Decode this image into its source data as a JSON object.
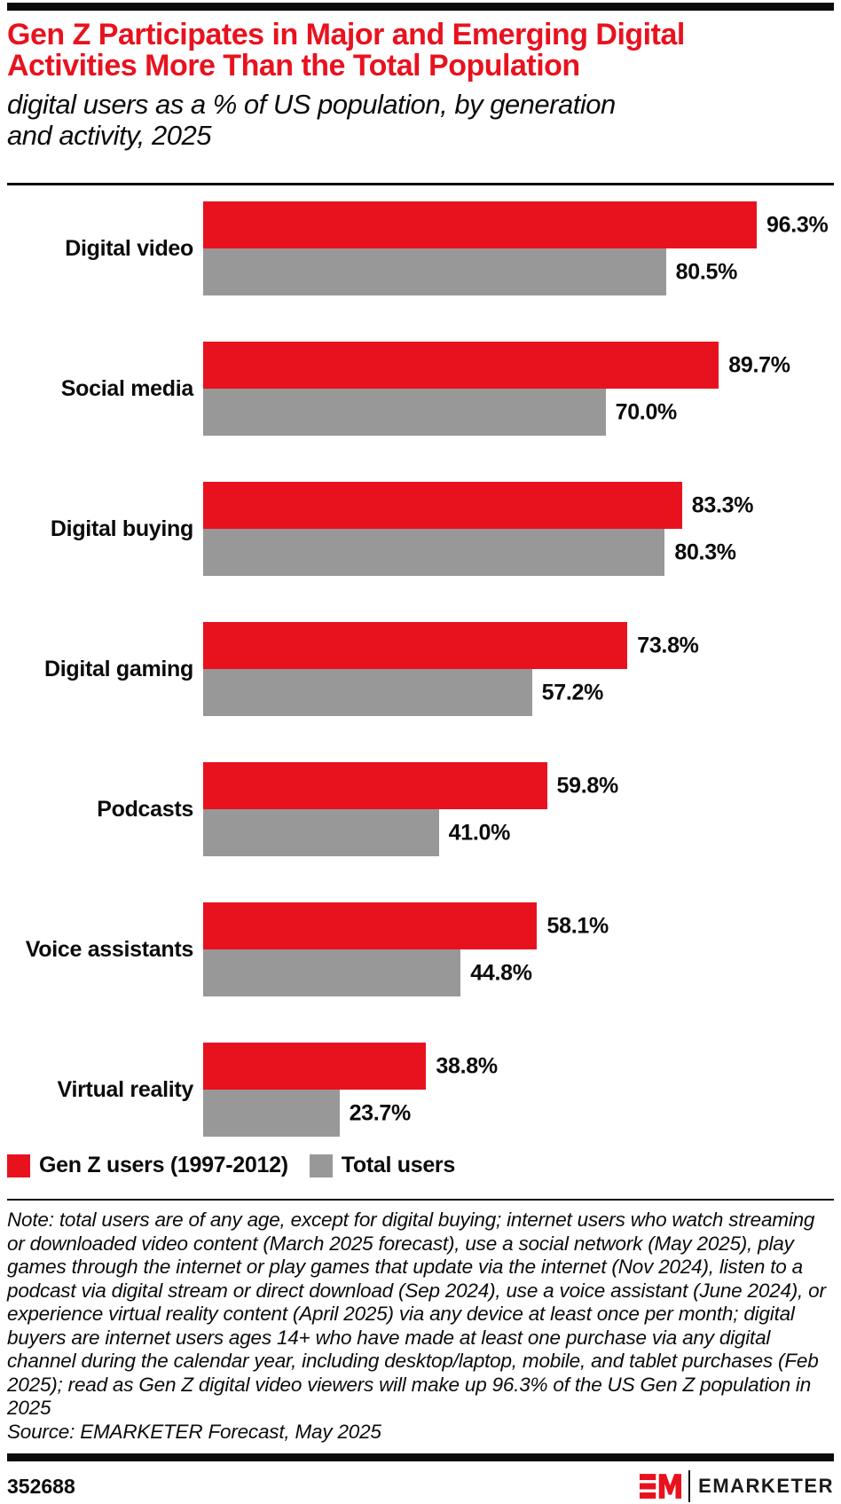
{
  "header": {
    "title": "Gen Z Participates in Major and Emerging Digital\nActivities More Than the Total Population",
    "subtitle": "digital users as a % of US population, by generation\nand activity, 2025"
  },
  "colors": {
    "brand_red": "#e8121f",
    "bar_gray": "#989898",
    "text_black": "#0b0b0b"
  },
  "chart_data": {
    "type": "bar",
    "orientation": "horizontal",
    "title": "Gen Z Participates in Major and Emerging Digital Activities More Than the Total Population",
    "subtitle": "digital users as a % of US population, by generation and activity, 2025",
    "value_unit": "%",
    "xlim": [
      0,
      100
    ],
    "grid": false,
    "legend_position": "bottom",
    "categories": [
      "Digital video",
      "Social media",
      "Digital buying",
      "Digital gaming",
      "Podcasts",
      "Voice assistants",
      "Virtual reality"
    ],
    "series": [
      {
        "name": "Gen Z users (1997-2012)",
        "color": "#e8121f",
        "values": [
          96.3,
          89.7,
          83.3,
          73.8,
          59.8,
          58.1,
          38.8
        ],
        "labels": [
          "96.3%",
          "89.7%",
          "83.3%",
          "73.8%",
          "59.8%",
          "58.1%",
          "38.8%"
        ]
      },
      {
        "name": "Total users",
        "color": "#989898",
        "values": [
          80.5,
          70.0,
          80.3,
          57.2,
          41.0,
          44.8,
          23.7
        ],
        "labels": [
          "80.5%",
          "70.0%",
          "80.3%",
          "57.2%",
          "41.0%",
          "44.8%",
          "23.7%"
        ]
      }
    ]
  },
  "footnote": {
    "note": "Note: total users are of any age, except for digital buying; internet users who watch streaming or downloaded video content (March 2025 forecast), use a social network (May 2025), play games through the internet or play games that update via the internet (Nov 2024), listen to a podcast via digital stream or direct download (Sep 2024), use a voice assistant (June 2024), or experience virtual reality content (April 2025) via any device at least once per month; digital buyers are internet users ages 14+ who have made at least one purchase via any digital channel during the calendar year, including desktop/laptop, mobile, and tablet purchases (Feb 2025); read as Gen Z digital video viewers will make up 96.3% of the US Gen Z population in 2025",
    "source": "Source: EMARKETER Forecast, May 2025"
  },
  "footer": {
    "chart_id": "352688",
    "logo_text": "EMARKETER"
  }
}
